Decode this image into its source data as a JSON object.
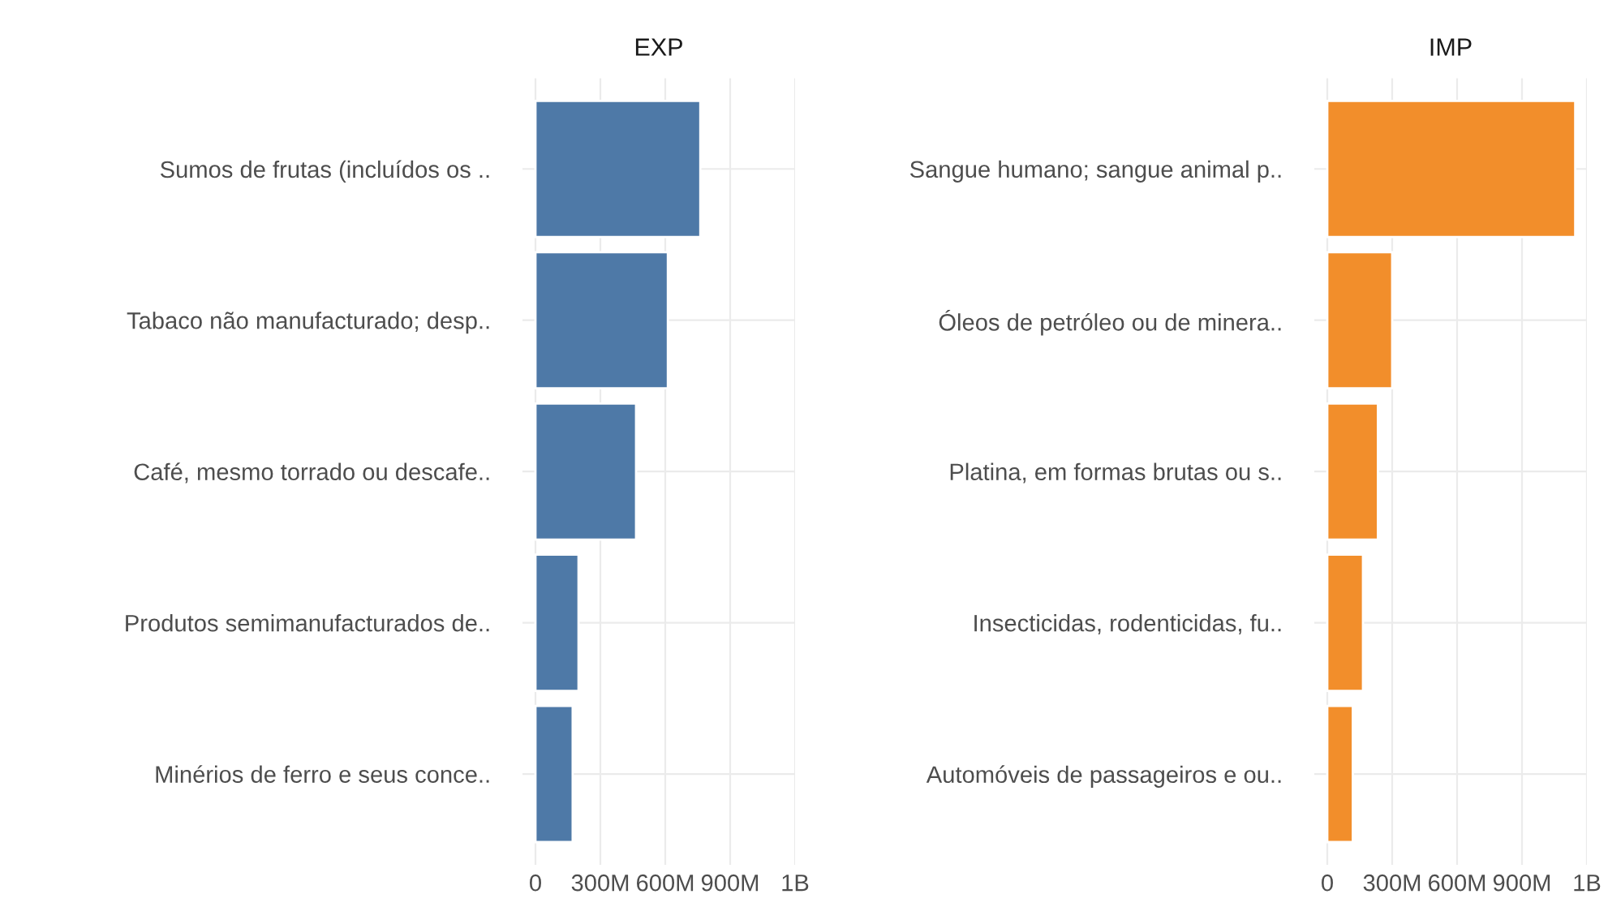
{
  "chart_data": [
    {
      "type": "bar",
      "orientation": "horizontal",
      "title": "EXP",
      "categories": [
        "Sumos de frutas (incluídos os ..",
        "Tabaco não manufacturado; desp..",
        "Café, mesmo torrado ou descafe..",
        "Produtos semimanufacturados de..",
        "Minérios de ferro e seus conce.."
      ],
      "values": [
        762000000,
        612000000,
        465000000,
        199000000,
        172000000
      ],
      "color": "#4e79a7",
      "xlim": [
        -60000000,
        1200000000
      ],
      "xticks": [
        0,
        {
          "value": 300000000,
          "label": "300M"
        },
        {
          "value": 600000000,
          "label": "600M"
        },
        {
          "value": 900000000,
          "label": "900M"
        },
        {
          "value": 1200000000,
          "label": "1B"
        }
      ],
      "grid": true
    },
    {
      "type": "bar",
      "orientation": "horizontal",
      "title": "IMP",
      "categories": [
        "Sangue humano; sangue animal p..",
        "Óleos de petróleo ou de minera..",
        "Platina, em formas brutas ou s..",
        "Insecticidas, rodenticidas, fu..",
        "Automóveis de passageiros e ou.."
      ],
      "values": [
        1146000000,
        300000000,
        234000000,
        165000000,
        118000000
      ],
      "color": "#f28e2b",
      "xlim": [
        -60000000,
        1200000000
      ],
      "xticks": [
        0,
        {
          "value": 300000000,
          "label": "300M"
        },
        {
          "value": 600000000,
          "label": "600M"
        },
        {
          "value": 900000000,
          "label": "900M"
        },
        {
          "value": 1200000000,
          "label": "1B"
        }
      ],
      "grid": true
    }
  ]
}
